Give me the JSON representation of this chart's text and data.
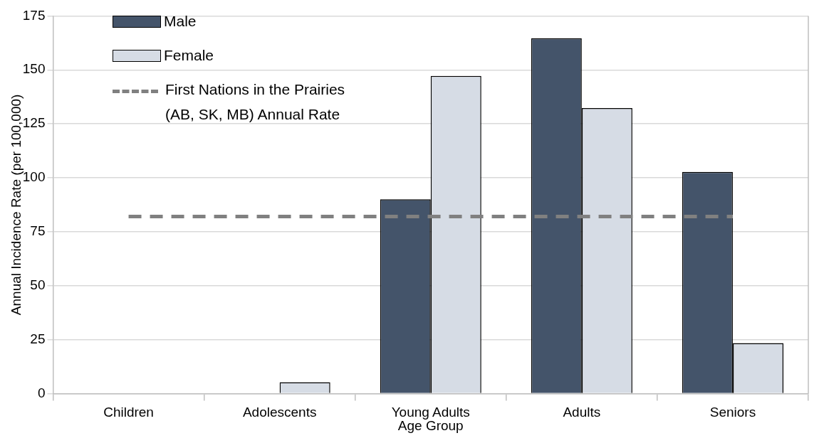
{
  "chart_data": {
    "type": "bar",
    "xlabel": "Age Group",
    "ylabel": "Annual Incidence Rate (per 100,000)",
    "categories": [
      "Children",
      "Adolescents",
      "Young Adults",
      "Adults",
      "Seniors"
    ],
    "series": [
      {
        "name": "Male",
        "color": "#44546a",
        "values": [
          0,
          0,
          90,
          164.7,
          102.7
        ]
      },
      {
        "name": "Female",
        "color": "#d6dce5",
        "values": [
          0,
          5.2,
          147.2,
          132.3,
          23.4
        ]
      }
    ],
    "ylim": [
      0,
      175
    ],
    "yticks": [
      0,
      25,
      50,
      75,
      100,
      125,
      150,
      175
    ],
    "grid": "y",
    "legend": "top left",
    "ref_lines": [
      {
        "axis": "y",
        "value": 82,
        "label": "First Nations in the Prairies (AB, SK, MB) Annual Rate",
        "color": "#808080",
        "line_style": "dashed"
      }
    ]
  }
}
